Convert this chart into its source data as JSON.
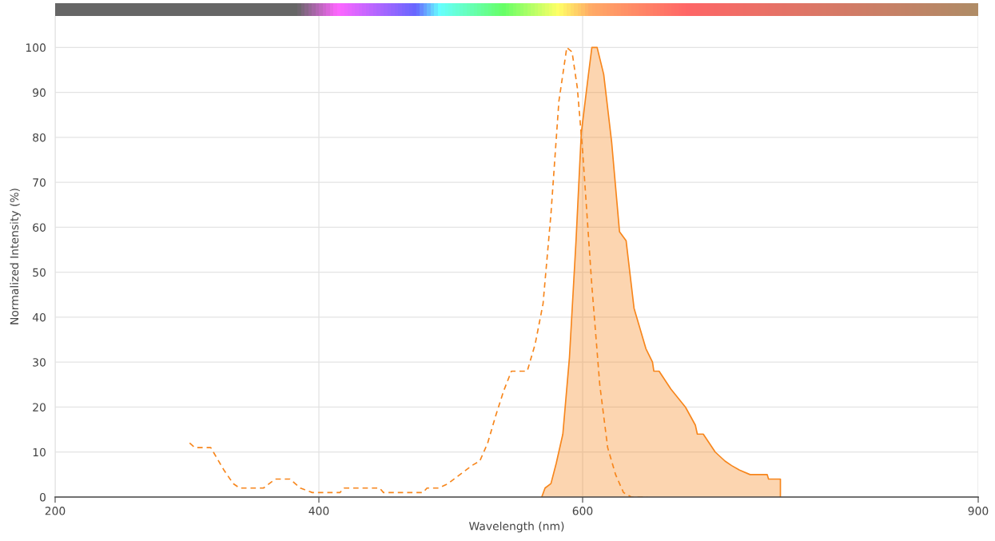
{
  "chart_data": {
    "type": "line",
    "xlabel": "Wavelength (nm)",
    "ylabel": "Normalized Intensity (%)",
    "xlim": [
      200,
      900
    ],
    "xticks": [
      200,
      400,
      600,
      900
    ],
    "ylim": [
      0,
      107
    ],
    "yticks": [
      0,
      10,
      20,
      30,
      40,
      50,
      60,
      70,
      80,
      90,
      100
    ],
    "grid": true,
    "legend": false,
    "series": [
      {
        "line_style": "dashed",
        "color": "#f7861c",
        "x": [
          302,
          306,
          318,
          322,
          328,
          335,
          340,
          358,
          367,
          378,
          386,
          395,
          416,
          419,
          446,
          449,
          479,
          482,
          491,
          498,
          507,
          516,
          522,
          528,
          534,
          540,
          546,
          558,
          564,
          570,
          576,
          582,
          588,
          592,
          596,
          600,
          607,
          613,
          619,
          625,
          631,
          637,
          649
        ],
        "values": [
          12,
          11,
          11,
          9,
          6,
          3,
          2,
          2,
          4,
          4,
          2,
          1,
          1,
          2,
          2,
          1,
          1,
          2,
          2,
          3,
          5,
          7,
          8,
          12,
          18,
          23.5,
          28,
          28,
          34,
          43,
          63,
          88,
          100,
          99,
          91,
          77,
          47,
          25,
          11,
          5,
          1,
          0,
          0
        ]
      },
      {
        "type": "area",
        "line_style": "solid",
        "color": "#f7861c",
        "x": [
          569,
          571.5,
          576,
          580,
          585,
          590,
          595,
          599,
          604,
          607,
          611,
          616,
          622,
          628,
          633,
          639,
          648,
          653,
          654,
          658,
          667,
          678,
          685.5,
          687,
          691.5,
          700.6,
          708,
          713,
          719,
          727,
          740,
          741,
          750,
          750
        ],
        "values": [
          0,
          2,
          3,
          7.5,
          14,
          31,
          57,
          81,
          93,
          100,
          100,
          94,
          79,
          59,
          57,
          42,
          33,
          30,
          28,
          28,
          24,
          20,
          16,
          14,
          14,
          10,
          8,
          7,
          6,
          5,
          5,
          4,
          4,
          0
        ]
      }
    ]
  }
}
